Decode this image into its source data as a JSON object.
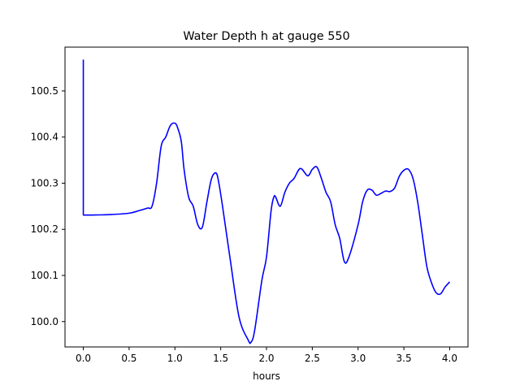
{
  "chart_data": {
    "type": "line",
    "title": "Water Depth h at gauge 550",
    "xlabel": "hours",
    "ylabel": "",
    "xlim": [
      -0.2,
      4.2
    ],
    "ylim": [
      99.945,
      100.595
    ],
    "grid": false,
    "x_ticks": [
      0.0,
      0.5,
      1.0,
      1.5,
      2.0,
      2.5,
      3.0,
      3.5,
      4.0
    ],
    "x_tick_labels": [
      "0.0",
      "0.5",
      "1.0",
      "1.5",
      "2.0",
      "2.5",
      "3.0",
      "3.5",
      "4.0"
    ],
    "y_ticks": [
      100.0,
      100.1,
      100.2,
      100.3,
      100.4,
      100.5
    ],
    "y_tick_labels": [
      "100.0",
      "100.1",
      "100.2",
      "100.3",
      "100.4",
      "100.5"
    ],
    "series": [
      {
        "color": "#0000ff",
        "x": [
          0.0,
          0.0,
          0.001,
          0.1,
          0.3,
          0.5,
          0.6,
          0.7,
          0.75,
          0.8,
          0.85,
          0.9,
          0.95,
          1.0,
          1.03,
          1.07,
          1.1,
          1.15,
          1.2,
          1.25,
          1.3,
          1.35,
          1.4,
          1.45,
          1.48,
          1.52,
          1.6,
          1.7,
          1.8,
          1.83,
          1.87,
          1.95,
          2.0,
          2.05,
          2.08,
          2.1,
          2.15,
          2.2,
          2.25,
          2.3,
          2.37,
          2.45,
          2.5,
          2.55,
          2.6,
          2.65,
          2.7,
          2.75,
          2.8,
          2.85,
          2.9,
          3.0,
          3.05,
          3.1,
          3.15,
          3.2,
          3.25,
          3.3,
          3.35,
          3.4,
          3.45,
          3.5,
          3.55,
          3.6,
          3.65,
          3.7,
          3.75,
          3.8,
          3.85,
          3.9,
          3.95,
          4.0
        ],
        "y": [
          100.568,
          100.232,
          100.231,
          100.231,
          100.232,
          100.235,
          100.24,
          100.246,
          100.25,
          100.3,
          100.38,
          100.4,
          100.425,
          100.43,
          100.42,
          100.39,
          100.33,
          100.27,
          100.25,
          100.21,
          100.205,
          100.26,
          100.31,
          100.322,
          100.3,
          100.25,
          100.14,
          100.01,
          99.96,
          99.955,
          99.98,
          100.09,
          100.14,
          100.24,
          100.27,
          100.27,
          100.25,
          100.28,
          100.3,
          100.31,
          100.332,
          100.316,
          100.33,
          100.335,
          100.31,
          100.28,
          100.26,
          100.21,
          100.18,
          100.13,
          100.14,
          100.21,
          100.26,
          100.285,
          100.285,
          100.274,
          100.278,
          100.283,
          100.282,
          100.29,
          100.315,
          100.328,
          100.33,
          100.31,
          100.26,
          100.19,
          100.12,
          100.085,
          100.063,
          100.06,
          100.075,
          100.086
        ]
      }
    ]
  }
}
